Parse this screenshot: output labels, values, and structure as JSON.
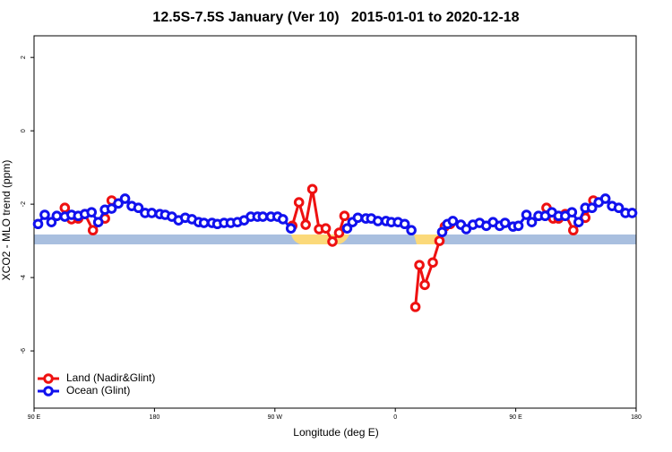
{
  "chart_data": {
    "type": "line",
    "title": "12.5S-7.5S January (Ver 10)   2015-01-01 to 2020-12-18",
    "x_label": "Longitude (deg E)",
    "y_label": "XCO2 - MLO trend (ppm)",
    "xlim": [
      90,
      540
    ],
    "xticks": [
      {
        "value": 90,
        "label": "90 E"
      },
      {
        "value": 180,
        "label": "180"
      },
      {
        "value": 270,
        "label": "90 W"
      },
      {
        "value": 360,
        "label": "0"
      },
      {
        "value": 450,
        "label": "90 E"
      },
      {
        "value": 540,
        "label": "180"
      }
    ],
    "ylim": [
      -7.56,
      2.59
    ],
    "yticks": [
      2,
      0,
      -2,
      -4,
      -6
    ],
    "legend": "bottom-left",
    "series": [
      {
        "name": "Land (Nadir&Glint)",
        "color": "#ee1111",
        "x": [
          113,
          118,
          123,
          128,
          134,
          143,
          148,
          null,
          283,
          288,
          293,
          298,
          303,
          308,
          313,
          318,
          322,
          null,
          375,
          378,
          382,
          388,
          393,
          397,
          401,
          null,
          473,
          478,
          482,
          487,
          493,
          502,
          508
        ],
        "values": [
          -2.1,
          -2.41,
          -2.39,
          -2.27,
          -2.71,
          -2.39,
          -1.9,
          null,
          -2.59,
          -1.95,
          -2.56,
          -1.59,
          -2.68,
          -2.66,
          -3.02,
          -2.78,
          -2.32,
          null,
          -4.8,
          -3.66,
          -4.2,
          -3.59,
          -3.0,
          -2.61,
          -2.54,
          null,
          -2.1,
          -2.39,
          -2.39,
          -2.27,
          -2.71,
          -2.37,
          -1.9
        ]
      },
      {
        "name": "Ocean (Glint)",
        "color": "#1111ee",
        "x": [
          93,
          98,
          103,
          107,
          113,
          118,
          123,
          128,
          133,
          138,
          143,
          148,
          153,
          158,
          163,
          168,
          173,
          178,
          184,
          188,
          193,
          198,
          203,
          208,
          213,
          217,
          223,
          227,
          232,
          237,
          242,
          247,
          252,
          257,
          261,
          267,
          272,
          276,
          282,
          null,
          324,
          328,
          332,
          338,
          342,
          347,
          353,
          357,
          362,
          367,
          372,
          null,
          395,
          399,
          403,
          409,
          413,
          418,
          423,
          428,
          433,
          438,
          442,
          448,
          452,
          458,
          462,
          467,
          472,
          477,
          482,
          487,
          492,
          497,
          502,
          507,
          512,
          517,
          522,
          527,
          532,
          537
        ],
        "values": [
          -2.54,
          -2.29,
          -2.49,
          -2.32,
          -2.34,
          -2.29,
          -2.32,
          -2.27,
          -2.22,
          -2.49,
          -2.15,
          -2.12,
          -1.98,
          -1.85,
          -2.05,
          -2.1,
          -2.24,
          -2.24,
          -2.27,
          -2.29,
          -2.34,
          -2.44,
          -2.37,
          -2.41,
          -2.49,
          -2.51,
          -2.51,
          -2.54,
          -2.51,
          -2.51,
          -2.49,
          -2.44,
          -2.34,
          -2.34,
          -2.34,
          -2.34,
          -2.34,
          -2.41,
          -2.66,
          null,
          -2.66,
          -2.49,
          -2.37,
          -2.39,
          -2.39,
          -2.46,
          -2.46,
          -2.49,
          -2.49,
          -2.54,
          -2.71,
          null,
          -2.76,
          -2.54,
          -2.46,
          -2.56,
          -2.68,
          -2.56,
          -2.51,
          -2.59,
          -2.49,
          -2.59,
          -2.51,
          -2.61,
          -2.59,
          -2.29,
          -2.49,
          -2.32,
          -2.32,
          -2.22,
          -2.32,
          -2.32,
          -2.22,
          -2.49,
          -2.1,
          -2.1,
          -1.95,
          -1.85,
          -2.05,
          -2.1,
          -2.24,
          -2.24
        ]
      }
    ]
  }
}
